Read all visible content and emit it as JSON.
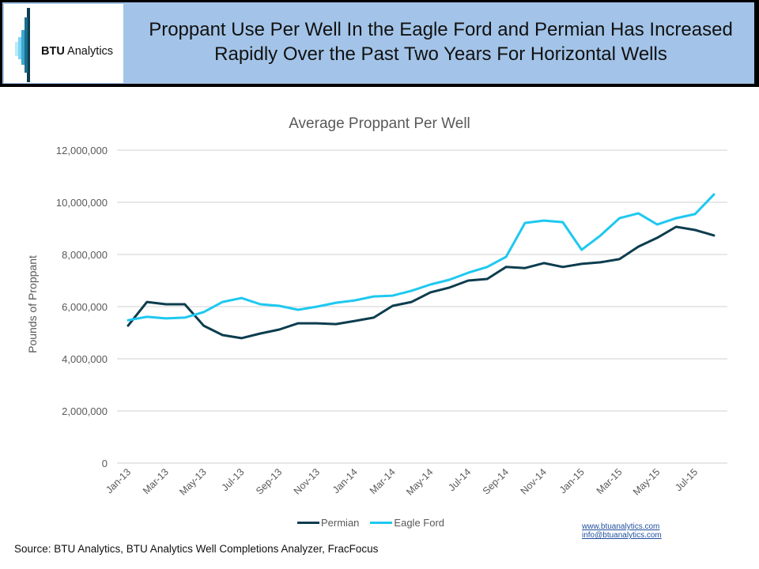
{
  "header": {
    "logo_bold": "BTU",
    "logo_rest": " Analytics",
    "title_line1": "Proppant Use Per Well In the Eagle Ford and Permian Has Increased",
    "title_line2": "Rapidly Over the Past Two Years For Horizontal Wells"
  },
  "colors": {
    "header_bg": "#a3c4e8",
    "permian": "#0d3d4f",
    "eagle_ford": "#1ec8f0",
    "grid": "#d0d0d0",
    "logo_bars": [
      "#0d3d4f",
      "#1a6e8c",
      "#3aa7d0",
      "#7fd4f0",
      "#b6ecfa"
    ]
  },
  "chart_data": {
    "type": "line",
    "title": "Average Proppant Per Well",
    "xlabel": "",
    "ylabel": "Pounds of Proppant",
    "ylim": [
      0,
      12000000
    ],
    "yticks": [
      0,
      2000000,
      4000000,
      6000000,
      8000000,
      10000000,
      12000000
    ],
    "ytick_labels": [
      "0",
      "2,000,000",
      "4,000,000",
      "6,000,000",
      "8,000,000",
      "10,000,000",
      "12,000,000"
    ],
    "grid": true,
    "legend_position": "bottom",
    "x": [
      "Jan-13",
      "Feb-13",
      "Mar-13",
      "Apr-13",
      "May-13",
      "Jun-13",
      "Jul-13",
      "Aug-13",
      "Sep-13",
      "Oct-13",
      "Nov-13",
      "Dec-13",
      "Jan-14",
      "Feb-14",
      "Mar-14",
      "Apr-14",
      "May-14",
      "Jun-14",
      "Jul-14",
      "Aug-14",
      "Sep-14",
      "Oct-14",
      "Nov-14",
      "Dec-14",
      "Jan-15",
      "Feb-15",
      "Mar-15",
      "Apr-15",
      "May-15",
      "Jun-15",
      "Jul-15",
      "Aug-15"
    ],
    "xtick_labels": [
      "Jan-13",
      "Mar-13",
      "May-13",
      "Jul-13",
      "Sep-13",
      "Nov-13",
      "Jan-14",
      "Mar-14",
      "May-14",
      "Jul-14",
      "Sep-14",
      "Nov-14",
      "Jan-15",
      "Mar-15",
      "May-15",
      "Jul-15"
    ],
    "series": [
      {
        "name": "Permian",
        "values": [
          5270000,
          6180000,
          6090000,
          6090000,
          5270000,
          4910000,
          4790000,
          4970000,
          5120000,
          5360000,
          5360000,
          5330000,
          5450000,
          5580000,
          6030000,
          6180000,
          6550000,
          6730000,
          7000000,
          7060000,
          7520000,
          7480000,
          7670000,
          7520000,
          7640000,
          7700000,
          7820000,
          8300000,
          8640000,
          9060000,
          8940000,
          8730000
        ]
      },
      {
        "name": "Eagle Ford",
        "values": [
          5480000,
          5610000,
          5550000,
          5580000,
          5790000,
          6180000,
          6330000,
          6090000,
          6030000,
          5880000,
          6000000,
          6150000,
          6240000,
          6390000,
          6420000,
          6610000,
          6850000,
          7030000,
          7300000,
          7520000,
          7910000,
          9210000,
          9300000,
          9240000,
          8180000,
          8730000,
          9390000,
          9580000,
          9150000,
          9390000,
          9550000,
          10300000
        ]
      }
    ]
  },
  "footer": {
    "link_web": "www.btuanalytics.com",
    "link_email": "info@btuanalytics.com",
    "source": "Source: BTU Analytics,  BTU Analytics Well Completions Analyzer, FracFocus"
  }
}
